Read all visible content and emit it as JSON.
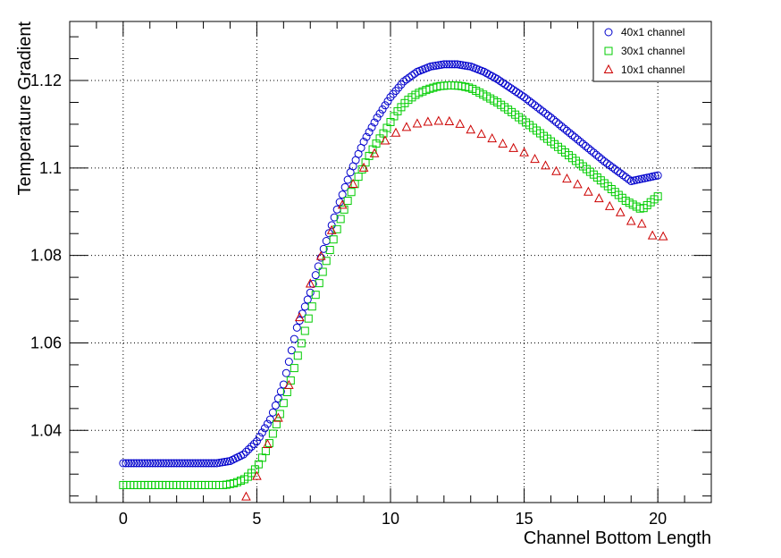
{
  "chart_data": {
    "type": "scatter",
    "xlabel": "Channel Bottom Length",
    "ylabel": "Temperature Gradient",
    "xlim": [
      -2,
      22
    ],
    "ylim": [
      1.0235,
      1.1335
    ],
    "x_ticks": [
      0,
      5,
      10,
      15,
      20
    ],
    "x_tick_labels": [
      "0",
      "5",
      "10",
      "15",
      "20"
    ],
    "y_ticks": [
      1.04,
      1.06,
      1.08,
      1.1,
      1.12
    ],
    "y_tick_labels": [
      "1.04",
      "1.06",
      "1.08",
      "1.1",
      "1.12"
    ],
    "grid": true,
    "legend_position": "top-right",
    "series": [
      {
        "name": "40x1 channel",
        "marker": "circle",
        "color": "#0000cc",
        "x_range": [
          0,
          20
        ],
        "count": 201,
        "points": [
          [
            0,
            1.0325
          ],
          [
            3.5,
            1.0325
          ],
          [
            4.0,
            1.033
          ],
          [
            4.5,
            1.0345
          ],
          [
            5.0,
            1.0375
          ],
          [
            5.5,
            1.0425
          ],
          [
            6.0,
            1.0505
          ],
          [
            6.5,
            1.0635
          ],
          [
            7.0,
            1.0715
          ],
          [
            7.5,
            1.0815
          ],
          [
            8.0,
            1.0905
          ],
          [
            8.5,
            1.099
          ],
          [
            9.0,
            1.106
          ],
          [
            9.5,
            1.1115
          ],
          [
            10.0,
            1.1162
          ],
          [
            10.5,
            1.1198
          ],
          [
            11.0,
            1.122
          ],
          [
            11.5,
            1.1232
          ],
          [
            12.0,
            1.1237
          ],
          [
            12.5,
            1.1237
          ],
          [
            13.0,
            1.1232
          ],
          [
            13.5,
            1.122
          ],
          [
            14.0,
            1.1203
          ],
          [
            15.0,
            1.1162
          ],
          [
            16.0,
            1.1115
          ],
          [
            17.0,
            1.1065
          ],
          [
            18.0,
            1.1015
          ],
          [
            19.0,
            1.097
          ],
          [
            20.0,
            1.0983
          ]
        ]
      },
      {
        "name": "30x1 channel",
        "marker": "square",
        "color": "#00cc00",
        "x_range": [
          0,
          20
        ],
        "count": 151,
        "points": [
          [
            0,
            1.0275
          ],
          [
            3.8,
            1.0275
          ],
          [
            4.2,
            1.028
          ],
          [
            4.6,
            1.029
          ],
          [
            5.0,
            1.0315
          ],
          [
            5.4,
            1.036
          ],
          [
            5.8,
            1.0425
          ],
          [
            6.2,
            1.05
          ],
          [
            6.6,
            1.0585
          ],
          [
            7.0,
            1.067
          ],
          [
            7.4,
            1.075
          ],
          [
            7.8,
            1.0825
          ],
          [
            8.2,
            1.0895
          ],
          [
            8.6,
            1.0955
          ],
          [
            9.0,
            1.1005
          ],
          [
            9.4,
            1.105
          ],
          [
            9.8,
            1.1085
          ],
          [
            10.2,
            1.1125
          ],
          [
            10.6,
            1.1153
          ],
          [
            11.0,
            1.117
          ],
          [
            11.4,
            1.118
          ],
          [
            11.8,
            1.1187
          ],
          [
            12.2,
            1.1189
          ],
          [
            12.6,
            1.1188
          ],
          [
            13.0,
            1.1183
          ],
          [
            13.4,
            1.117
          ],
          [
            14.0,
            1.115
          ],
          [
            14.6,
            1.1125
          ],
          [
            15.2,
            1.1098
          ],
          [
            15.8,
            1.107
          ],
          [
            16.4,
            1.1042
          ],
          [
            17.0,
            1.1013
          ],
          [
            17.6,
            1.0985
          ],
          [
            18.2,
            1.0955
          ],
          [
            18.8,
            1.0925
          ],
          [
            19.4,
            1.0905
          ],
          [
            20.0,
            1.0935
          ]
        ]
      },
      {
        "name": "10x1 channel",
        "marker": "triangle",
        "color": "#cc0000",
        "points": [
          [
            4.6,
            1.0248
          ],
          [
            5.0,
            1.0295
          ],
          [
            5.4,
            1.0368
          ],
          [
            5.8,
            1.0428
          ],
          [
            6.2,
            1.0503
          ],
          [
            6.6,
            1.0658
          ],
          [
            7.0,
            1.0735
          ],
          [
            7.4,
            1.0798
          ],
          [
            7.8,
            1.0857
          ],
          [
            8.2,
            1.0915
          ],
          [
            8.6,
            1.0963
          ],
          [
            9.0,
            1.1
          ],
          [
            9.4,
            1.1033
          ],
          [
            9.8,
            1.1062
          ],
          [
            10.2,
            1.108
          ],
          [
            10.6,
            1.1093
          ],
          [
            11.0,
            1.1101
          ],
          [
            11.4,
            1.1105
          ],
          [
            11.8,
            1.1107
          ],
          [
            12.2,
            1.1106
          ],
          [
            12.6,
            1.11
          ],
          [
            13.0,
            1.1087
          ],
          [
            13.4,
            1.1077
          ],
          [
            13.8,
            1.1067
          ],
          [
            14.2,
            1.1055
          ],
          [
            14.6,
            1.1045
          ],
          [
            15.0,
            1.1035
          ],
          [
            15.4,
            1.102
          ],
          [
            15.8,
            1.1005
          ],
          [
            16.2,
            1.0992
          ],
          [
            16.6,
            1.0975
          ],
          [
            17.0,
            1.0962
          ],
          [
            17.4,
            1.0945
          ],
          [
            17.8,
            1.093
          ],
          [
            18.2,
            1.0912
          ],
          [
            18.6,
            1.0898
          ],
          [
            19.0,
            1.0878
          ],
          [
            19.4,
            1.0872
          ],
          [
            19.8,
            1.0845
          ],
          [
            20.2,
            1.0843
          ]
        ]
      }
    ]
  }
}
